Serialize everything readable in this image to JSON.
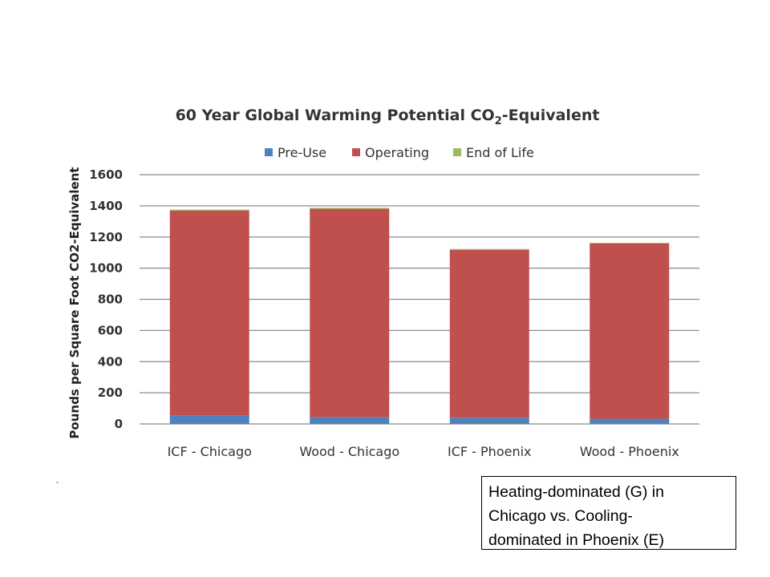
{
  "chart_data": {
    "type": "bar",
    "stacked": true,
    "title": "60 Year Global Warming Potential CO",
    "title_subscript": "2",
    "title_suffix": "-Equivalent",
    "ylabel": "Pounds per Square Foot CO2-Equivalent",
    "xlabel": "",
    "categories": [
      "ICF - Chicago",
      "Wood - Chicago",
      "ICF - Phoenix",
      "Wood - Phoenix"
    ],
    "series": [
      {
        "name": "Pre-Use",
        "color": "#4F81BD",
        "values": [
          55,
          43,
          40,
          33
        ]
      },
      {
        "name": "Operating",
        "color": "#C0504D",
        "values": [
          1315,
          1338,
          1078,
          1125
        ]
      },
      {
        "name": "End of Life",
        "color": "#9BBB59",
        "values": [
          6,
          6,
          5,
          5
        ]
      }
    ],
    "ylim": [
      0,
      1600
    ],
    "yticks": [
      "0",
      "200",
      "400",
      "600",
      "800",
      "1000",
      "1200",
      "1400",
      "1600"
    ],
    "grid": true,
    "legend_position": "top"
  },
  "note": {
    "text": "Heating-dominated (G) in\nChicago vs. Cooling-\ndominated in Phoenix (E)"
  },
  "stray_mark": "-"
}
